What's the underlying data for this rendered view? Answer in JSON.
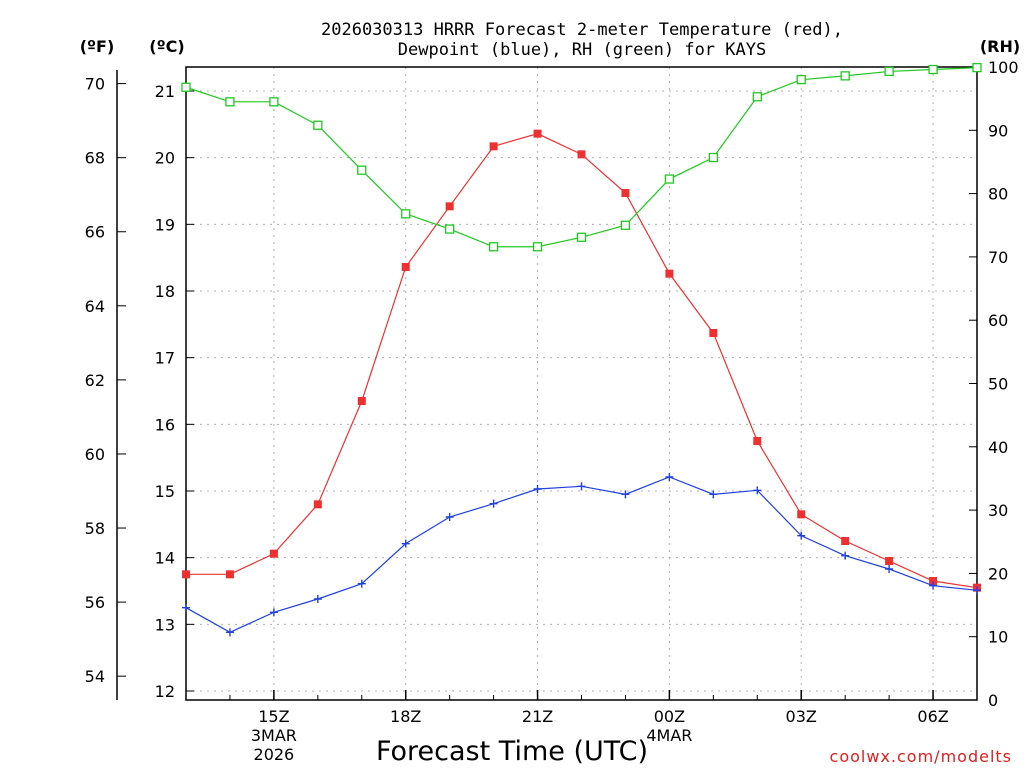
{
  "chart_data": {
    "type": "line",
    "title": [
      "2026030313 HRRR Forecast 2-meter Temperature (red),",
      "Dewpoint (blue), RH (green) for KAYS"
    ],
    "xlabel": "Forecast Time (UTC)",
    "x_hours": [
      13,
      14,
      15,
      16,
      17,
      18,
      19,
      20,
      21,
      22,
      23,
      24,
      25,
      26,
      27,
      28,
      29,
      30,
      31
    ],
    "x_ticks": [
      {
        "hour": 15,
        "lines": [
          "15Z",
          "3MAR",
          "2026"
        ]
      },
      {
        "hour": 18,
        "lines": [
          "18Z"
        ]
      },
      {
        "hour": 21,
        "lines": [
          "21Z"
        ]
      },
      {
        "hour": 24,
        "lines": [
          "00Z",
          "4MAR"
        ]
      },
      {
        "hour": 27,
        "lines": [
          "03Z"
        ]
      },
      {
        "hour": 30,
        "lines": [
          "06Z"
        ]
      }
    ],
    "left_axis_f": {
      "label": "(ºF)",
      "ticks": [
        "54",
        "56",
        "58",
        "60",
        "62",
        "64",
        "66",
        "68",
        "70"
      ]
    },
    "left_axis_c": {
      "label": "(ºC)",
      "ticks": [
        "12",
        "13",
        "14",
        "15",
        "16",
        "17",
        "18",
        "19",
        "20",
        "21"
      ],
      "ylim": [
        12,
        21.5
      ]
    },
    "right_axis": {
      "label": "(RH)",
      "ticks": [
        "0",
        "10",
        "20",
        "30",
        "40",
        "50",
        "60",
        "70",
        "80",
        "90",
        "100"
      ],
      "ylim": [
        0,
        100
      ]
    },
    "series": [
      {
        "name": "2-meter Temperature",
        "axis": "c",
        "color": "#ee3030",
        "marker": "filled-square",
        "values": [
          13.75,
          13.75,
          14.06,
          14.8,
          16.35,
          18.36,
          19.27,
          20.17,
          20.36,
          20.05,
          19.47,
          18.26,
          17.37,
          15.75,
          14.65,
          14.25,
          13.95,
          13.65,
          13.55
        ]
      },
      {
        "name": "Dewpoint",
        "axis": "c",
        "color": "#2040e0",
        "marker": "plus",
        "values": [
          13.25,
          12.88,
          13.18,
          13.38,
          13.61,
          14.21,
          14.61,
          14.81,
          15.03,
          15.07,
          14.95,
          15.21,
          14.95,
          15.01,
          14.33,
          14.03,
          13.83,
          13.58,
          13.51
        ]
      },
      {
        "name": "RH",
        "axis": "rh",
        "color": "#20c820",
        "marker": "open-square",
        "values": [
          96.8,
          94.5,
          94.5,
          90.8,
          83.7,
          76.8,
          74.4,
          71.6,
          71.6,
          73.1,
          75.0,
          82.3,
          85.7,
          95.3,
          98.0,
          98.6,
          99.3,
          99.6,
          99.9
        ]
      }
    ]
  },
  "credit": "coolwx.com/modelts"
}
